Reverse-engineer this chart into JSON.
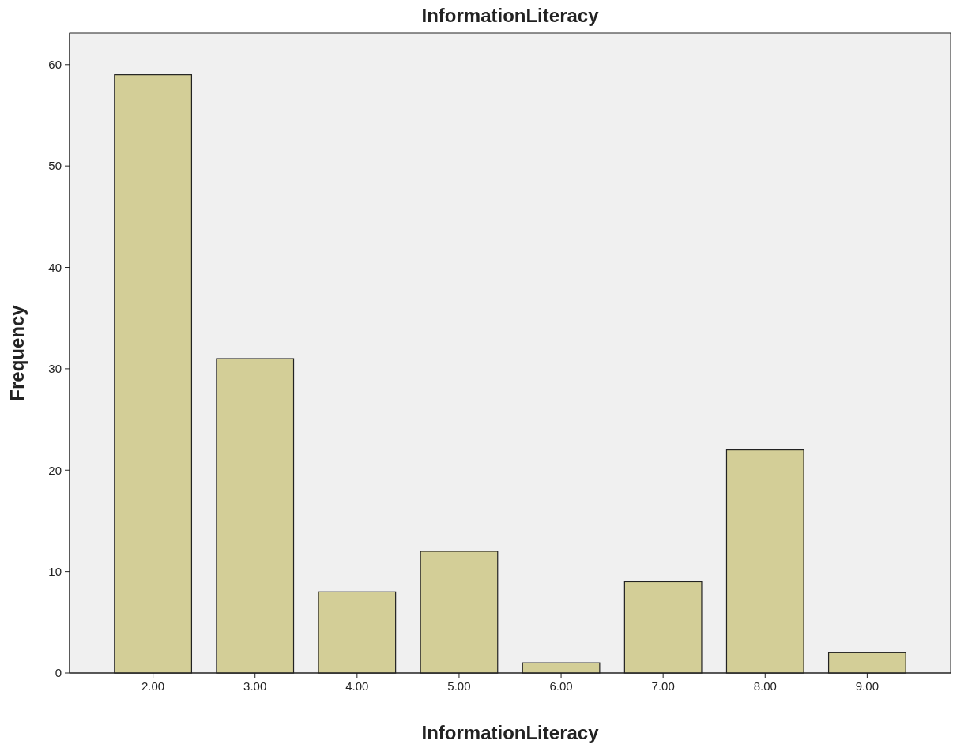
{
  "chart_data": {
    "type": "bar",
    "title": "InformationLiteracy",
    "xlabel": "InformationLiteracy",
    "ylabel": "Frequency",
    "categories": [
      "2.00",
      "3.00",
      "4.00",
      "5.00",
      "6.00",
      "7.00",
      "8.00",
      "9.00"
    ],
    "values": [
      59,
      31,
      8,
      12,
      1,
      9,
      22,
      2
    ],
    "color": "#d3ce97",
    "ylim": [
      0,
      63.1
    ],
    "yticks": [
      0,
      10,
      20,
      30,
      40,
      50,
      60
    ],
    "grid": false
  }
}
